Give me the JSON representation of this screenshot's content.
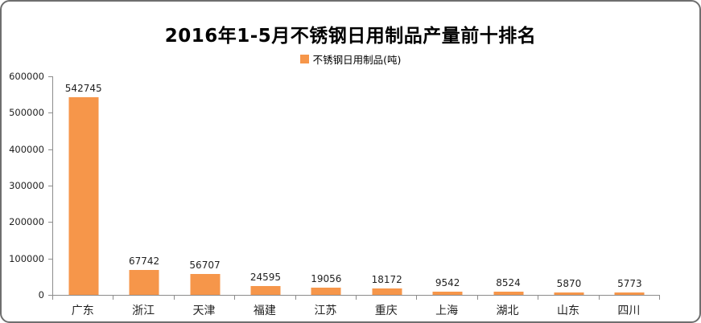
{
  "chart_data": {
    "type": "bar",
    "title": "2016年1-5月不锈钢日用制品产量前十排名",
    "legend": "不锈钢日用制品(吨)",
    "legend_position": "top",
    "categories": [
      "广东",
      "浙江",
      "天津",
      "福建",
      "江苏",
      "重庆",
      "上海",
      "湖北",
      "山东",
      "四川"
    ],
    "values": [
      542745,
      67742,
      56707,
      24595,
      19056,
      18172,
      9542,
      8524,
      5870,
      5773
    ],
    "xlabel": "",
    "ylabel": "",
    "ylim": [
      0,
      600000
    ],
    "yticks": [
      0,
      100000,
      200000,
      300000,
      400000,
      500000,
      600000
    ],
    "grid": false,
    "bar_color": "#F6964A",
    "axis_color": "#8C8C8C",
    "text_color": "#1F1F1F",
    "frame_border_color": "#6E6E6E"
  }
}
